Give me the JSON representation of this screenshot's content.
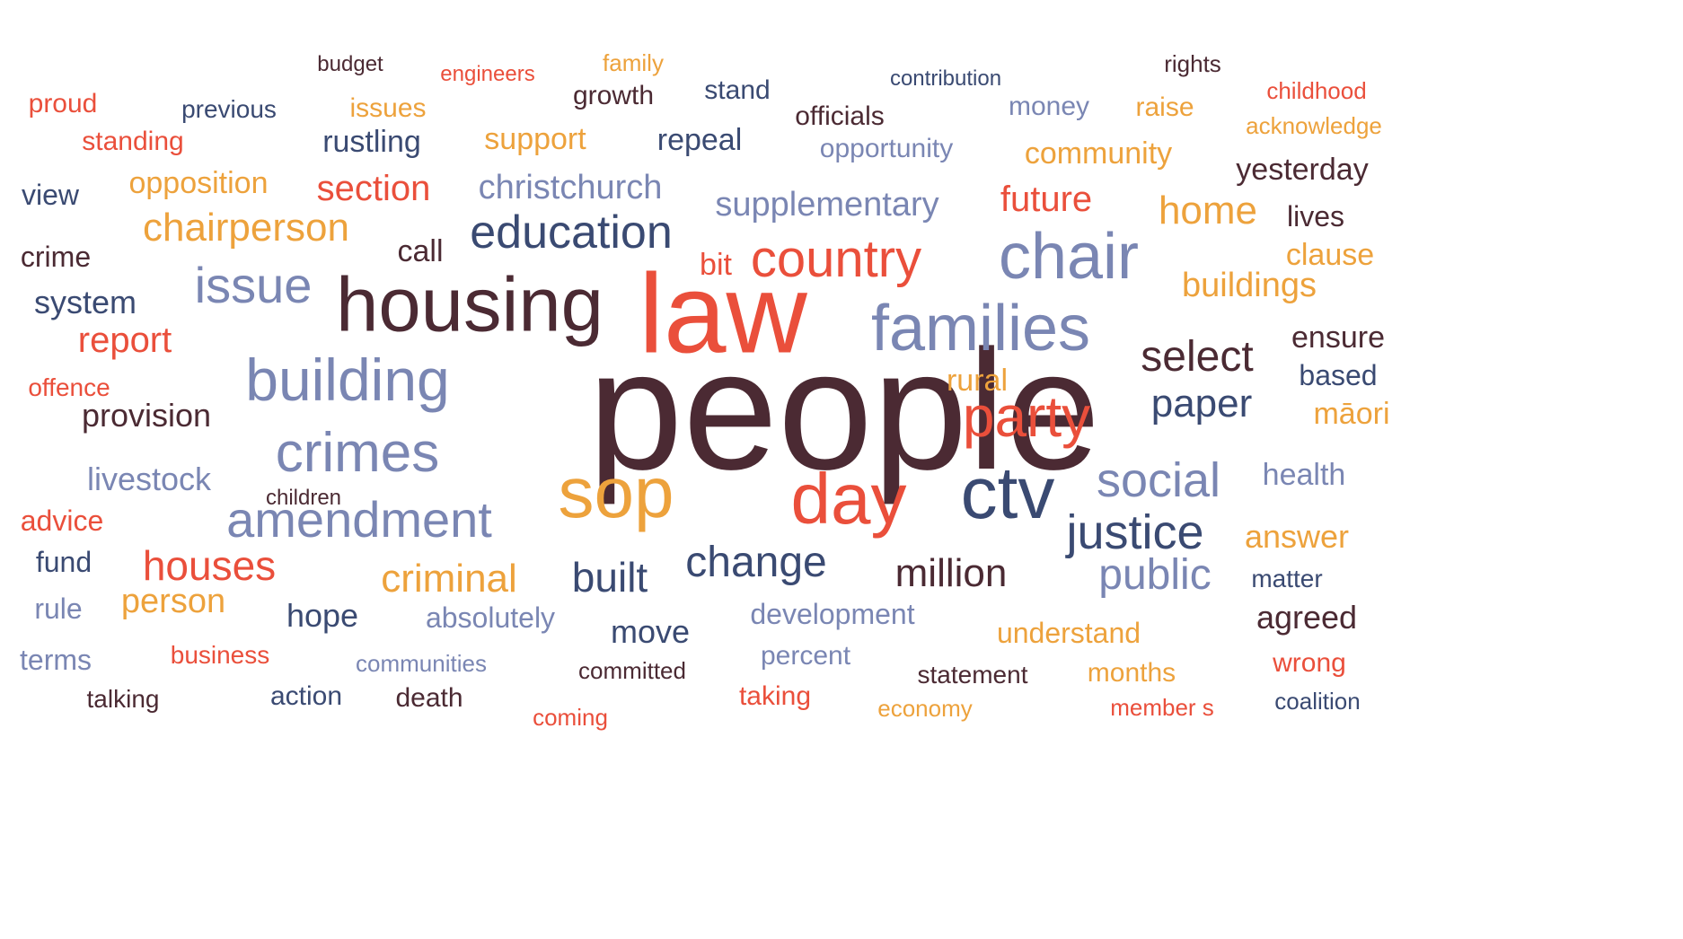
{
  "colors": {
    "red": "#ea4f3b",
    "orange": "#eda23c",
    "navy": "#3a4a72",
    "slate": "#7a86b3",
    "maroon": "#4b2a33"
  },
  "words": [
    {
      "text": "people",
      "color": "maroon"
    },
    {
      "text": "law",
      "color": "red"
    },
    {
      "text": "housing",
      "color": "maroon"
    },
    {
      "text": "families",
      "color": "slate"
    },
    {
      "text": "chair",
      "color": "slate"
    },
    {
      "text": "building",
      "color": "slate"
    },
    {
      "text": "sop",
      "color": "orange"
    },
    {
      "text": "day",
      "color": "red"
    },
    {
      "text": "ctv",
      "color": "navy"
    },
    {
      "text": "crimes",
      "color": "slate"
    },
    {
      "text": "party",
      "color": "red"
    },
    {
      "text": "amendment",
      "color": "slate"
    },
    {
      "text": "country",
      "color": "red"
    },
    {
      "text": "education",
      "color": "navy"
    },
    {
      "text": "issue",
      "color": "slate"
    },
    {
      "text": "social",
      "color": "slate"
    },
    {
      "text": "justice",
      "color": "navy"
    },
    {
      "text": "select",
      "color": "maroon"
    },
    {
      "text": "paper",
      "color": "navy"
    },
    {
      "text": "change",
      "color": "navy"
    },
    {
      "text": "chairperson",
      "color": "orange"
    },
    {
      "text": "home",
      "color": "orange"
    },
    {
      "text": "public",
      "color": "slate"
    },
    {
      "text": "million",
      "color": "maroon"
    },
    {
      "text": "criminal",
      "color": "orange"
    },
    {
      "text": "houses",
      "color": "red"
    },
    {
      "text": "built",
      "color": "navy"
    },
    {
      "text": "section",
      "color": "red"
    },
    {
      "text": "future",
      "color": "red"
    },
    {
      "text": "buildings",
      "color": "orange"
    },
    {
      "text": "christchurch",
      "color": "slate"
    },
    {
      "text": "supplementary",
      "color": "slate"
    },
    {
      "text": "report",
      "color": "red"
    },
    {
      "text": "person",
      "color": "orange"
    },
    {
      "text": "opposition",
      "color": "orange"
    },
    {
      "text": "livestock",
      "color": "slate"
    },
    {
      "text": "hope",
      "color": "navy"
    },
    {
      "text": "provision",
      "color": "maroon"
    },
    {
      "text": "system",
      "color": "navy"
    },
    {
      "text": "yesterday",
      "color": "maroon"
    },
    {
      "text": "ensure",
      "color": "maroon"
    },
    {
      "text": "clause",
      "color": "orange"
    },
    {
      "text": "health",
      "color": "slate"
    },
    {
      "text": "answer",
      "color": "orange"
    },
    {
      "text": "māori",
      "color": "orange"
    },
    {
      "text": "agreed",
      "color": "maroon"
    },
    {
      "text": "move",
      "color": "navy"
    },
    {
      "text": "support",
      "color": "orange"
    },
    {
      "text": "repeal",
      "color": "navy"
    },
    {
      "text": "rustling",
      "color": "navy"
    },
    {
      "text": "community",
      "color": "orange"
    },
    {
      "text": "bit",
      "color": "red"
    },
    {
      "text": "call",
      "color": "maroon"
    },
    {
      "text": "view",
      "color": "navy"
    },
    {
      "text": "crime",
      "color": "maroon"
    },
    {
      "text": "advice",
      "color": "red"
    },
    {
      "text": "fund",
      "color": "navy"
    },
    {
      "text": "rule",
      "color": "slate"
    },
    {
      "text": "terms",
      "color": "slate"
    },
    {
      "text": "lives",
      "color": "maroon"
    },
    {
      "text": "based",
      "color": "navy"
    },
    {
      "text": "rural",
      "color": "orange"
    },
    {
      "text": "development",
      "color": "slate"
    },
    {
      "text": "absolutely",
      "color": "slate"
    },
    {
      "text": "understand",
      "color": "orange"
    },
    {
      "text": "growth",
      "color": "maroon"
    },
    {
      "text": "stand",
      "color": "navy"
    },
    {
      "text": "officials",
      "color": "maroon"
    },
    {
      "text": "opportunity",
      "color": "slate"
    },
    {
      "text": "money",
      "color": "slate"
    },
    {
      "text": "raise",
      "color": "orange"
    },
    {
      "text": "proud",
      "color": "red"
    },
    {
      "text": "standing",
      "color": "red"
    },
    {
      "text": "previous",
      "color": "navy"
    },
    {
      "text": "issues",
      "color": "orange"
    },
    {
      "text": "action",
      "color": "navy"
    },
    {
      "text": "death",
      "color": "maroon"
    },
    {
      "text": "percent",
      "color": "slate"
    },
    {
      "text": "taking",
      "color": "red"
    },
    {
      "text": "statement",
      "color": "maroon"
    },
    {
      "text": "months",
      "color": "orange"
    },
    {
      "text": "wrong",
      "color": "red"
    },
    {
      "text": "matter",
      "color": "navy"
    },
    {
      "text": "coalition",
      "color": "navy"
    },
    {
      "text": "talking",
      "color": "maroon"
    },
    {
      "text": "committed",
      "color": "maroon"
    },
    {
      "text": "communities",
      "color": "slate"
    },
    {
      "text": "business",
      "color": "red"
    },
    {
      "text": "offence",
      "color": "red"
    },
    {
      "text": "children",
      "color": "maroon"
    },
    {
      "text": "coming",
      "color": "red"
    },
    {
      "text": "economy",
      "color": "orange"
    },
    {
      "text": "member s",
      "color": "red"
    },
    {
      "text": "rights",
      "color": "maroon"
    },
    {
      "text": "childhood",
      "color": "red"
    },
    {
      "text": "acknowledge",
      "color": "orange"
    },
    {
      "text": "contribution",
      "color": "navy"
    },
    {
      "text": "family",
      "color": "orange"
    },
    {
      "text": "engineers",
      "color": "red"
    },
    {
      "text": "budget",
      "color": "maroon"
    }
  ]
}
